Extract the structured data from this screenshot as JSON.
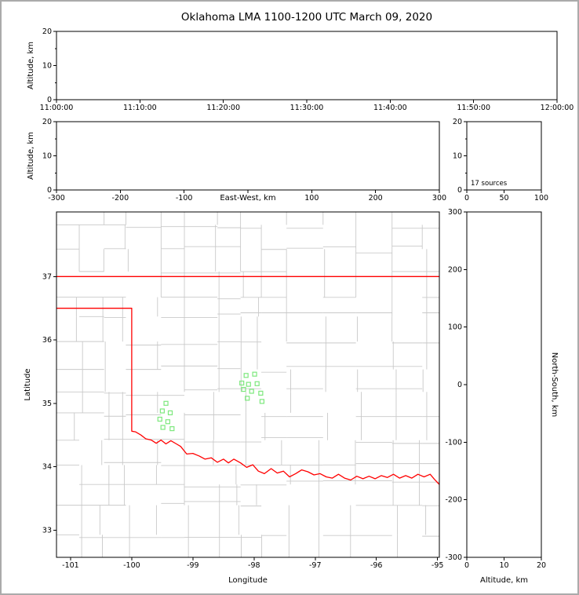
{
  "title": "Oklahoma LMA 1100-1200 UTC March 09, 2020",
  "colors": {
    "background": "#ffffff",
    "frame_border": "#ababab",
    "axis": "#000000",
    "county_lines": "#c9c9c9",
    "state_border": "#ff0000",
    "source_marker": "#7de87d"
  },
  "panels": {
    "time_height": {
      "ylabel": "Altitude, km",
      "ylim": [
        0,
        20
      ],
      "yticks": [
        0,
        10,
        20
      ],
      "yminor": [
        5,
        15
      ],
      "xtick_labels": [
        "11:00:00",
        "11:10:00",
        "11:20:00",
        "11:30:00",
        "11:40:00",
        "11:50:00",
        "12:00:00"
      ]
    },
    "east_west_height": {
      "xlabel": "East-West, km",
      "ylabel": "Altitude, km",
      "xlim": [
        -300,
        300
      ],
      "xticks": [
        -300,
        -200,
        -100,
        0,
        100,
        200,
        300
      ],
      "xtick_labels": [
        "-300",
        "-200",
        "-100",
        "",
        "100",
        "200",
        "300"
      ],
      "ylim": [
        0,
        20
      ],
      "yticks": [
        0,
        10,
        20
      ],
      "yminor": [
        5,
        15
      ]
    },
    "source_stats": {
      "annotation": "17 sources",
      "xlim": [
        0,
        100
      ],
      "xticks": [
        0,
        50,
        100
      ],
      "ylim": [
        0,
        20
      ],
      "yticks": [
        0,
        10,
        20
      ],
      "yminor": [
        5,
        15
      ]
    },
    "plan_map": {
      "xlabel": "Longitude",
      "ylabel": "Latitude",
      "xlim": [
        -101.23,
        -94.97
      ],
      "ylim": [
        32.57,
        38.02
      ],
      "xticks": [
        -101,
        -100,
        -99,
        -98,
        -97,
        -96,
        -95
      ],
      "yticks": [
        33,
        34,
        35,
        36,
        37
      ]
    },
    "north_south_height": {
      "xlabel": "Altitude, km",
      "ylabel": "North-South, km",
      "xlim": [
        0,
        20
      ],
      "xticks": [
        0,
        10,
        20
      ],
      "ylim": [
        -300,
        300
      ],
      "yticks": [
        300,
        200,
        100,
        0,
        -100,
        -200,
        -300
      ]
    }
  },
  "chart_data": {
    "type": "scatter",
    "title": "Oklahoma LMA 1100-1200 UTC March 09, 2020",
    "source_count": 17,
    "source_count_label": "17 sources",
    "map": {
      "points_lon_lat": [
        [
          -98.13,
          35.44
        ],
        [
          -97.99,
          35.46
        ],
        [
          -98.2,
          35.32
        ],
        [
          -98.09,
          35.3
        ],
        [
          -97.95,
          35.31
        ],
        [
          -98.17,
          35.22
        ],
        [
          -98.04,
          35.19
        ],
        [
          -97.89,
          35.16
        ],
        [
          -98.11,
          35.08
        ],
        [
          -97.87,
          35.03
        ],
        [
          -99.44,
          35.0
        ],
        [
          -99.5,
          34.88
        ],
        [
          -99.37,
          34.85
        ],
        [
          -99.54,
          34.75
        ],
        [
          -99.41,
          34.71
        ],
        [
          -99.49,
          34.62
        ],
        [
          -99.34,
          34.6
        ]
      ],
      "state_border": {
        "north": [
          [
            -101.23,
            37.0
          ],
          [
            -94.97,
            37.0
          ]
        ],
        "west_and_red_river": [
          [
            -101.23,
            36.5
          ],
          [
            -100.0,
            36.5
          ],
          [
            -100.0,
            34.56
          ],
          [
            -99.94,
            34.55
          ],
          [
            -99.85,
            34.5
          ],
          [
            -99.77,
            34.44
          ],
          [
            -99.68,
            34.42
          ],
          [
            -99.6,
            34.37
          ],
          [
            -99.52,
            34.42
          ],
          [
            -99.44,
            34.36
          ],
          [
            -99.36,
            34.41
          ],
          [
            -99.27,
            34.36
          ],
          [
            -99.2,
            34.32
          ],
          [
            -99.1,
            34.2
          ],
          [
            -99.0,
            34.21
          ],
          [
            -98.9,
            34.17
          ],
          [
            -98.8,
            34.12
          ],
          [
            -98.7,
            34.14
          ],
          [
            -98.6,
            34.07
          ],
          [
            -98.5,
            34.12
          ],
          [
            -98.42,
            34.06
          ],
          [
            -98.33,
            34.12
          ],
          [
            -98.22,
            34.06
          ],
          [
            -98.12,
            33.99
          ],
          [
            -98.02,
            34.03
          ],
          [
            -97.93,
            33.93
          ],
          [
            -97.83,
            33.89
          ],
          [
            -97.72,
            33.97
          ],
          [
            -97.62,
            33.9
          ],
          [
            -97.52,
            33.93
          ],
          [
            -97.42,
            33.84
          ],
          [
            -97.32,
            33.89
          ],
          [
            -97.22,
            33.95
          ],
          [
            -97.12,
            33.92
          ],
          [
            -97.02,
            33.87
          ],
          [
            -96.92,
            33.89
          ],
          [
            -96.82,
            33.84
          ],
          [
            -96.72,
            33.82
          ],
          [
            -96.62,
            33.88
          ],
          [
            -96.52,
            33.82
          ],
          [
            -96.42,
            33.79
          ],
          [
            -96.32,
            33.85
          ],
          [
            -96.22,
            33.81
          ],
          [
            -96.12,
            33.85
          ],
          [
            -96.02,
            33.81
          ],
          [
            -95.92,
            33.86
          ],
          [
            -95.82,
            33.83
          ],
          [
            -95.72,
            33.88
          ],
          [
            -95.62,
            33.82
          ],
          [
            -95.52,
            33.86
          ],
          [
            -95.42,
            33.82
          ],
          [
            -95.32,
            33.88
          ],
          [
            -95.22,
            33.84
          ],
          [
            -95.12,
            33.88
          ],
          [
            -95.05,
            33.8
          ],
          [
            -94.99,
            33.74
          ],
          [
            -94.97,
            33.72
          ]
        ]
      }
    },
    "time_height_points": [],
    "east_west_height_points": [],
    "north_south_height_points": []
  }
}
